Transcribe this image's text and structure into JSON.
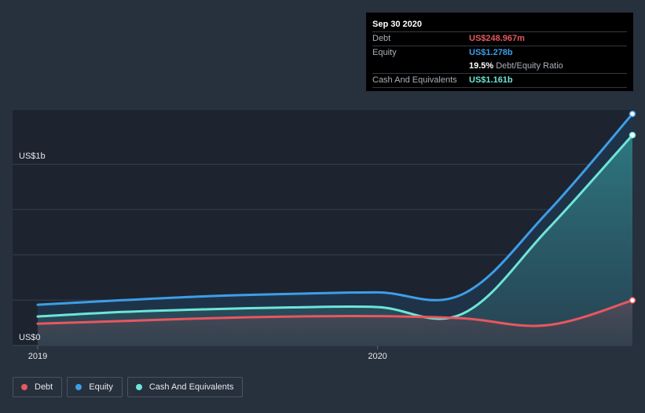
{
  "chart_data": {
    "type": "area",
    "x": [
      2019.0,
      2019.25,
      2019.5,
      2019.75,
      2020.0,
      2020.25,
      2020.5,
      2020.75
    ],
    "x_ticks": [
      {
        "value": 2019.0,
        "label": "2019"
      },
      {
        "value": 2020.0,
        "label": "2020"
      }
    ],
    "y_ticks": [
      {
        "value": 0,
        "label": "US$0"
      },
      {
        "value": 1000,
        "label": "US$1b"
      }
    ],
    "ylim": [
      0,
      1300
    ],
    "series": [
      {
        "name": "Cash And Equivalents",
        "color": "#6ee5d8",
        "values": [
          160,
          185,
          200,
          210,
          212,
          175,
          640,
          1161
        ]
      },
      {
        "name": "Equity",
        "color": "#3d9ee8",
        "values": [
          225,
          250,
          272,
          285,
          293,
          283,
          735,
          1278
        ]
      },
      {
        "name": "Debt",
        "color": "#e8575f",
        "values": [
          120,
          135,
          150,
          160,
          162,
          150,
          112,
          249
        ]
      }
    ]
  },
  "tooltip": {
    "date": "Sep 30 2020",
    "debt_label": "Debt",
    "debt_value": "US$248.967m",
    "equity_label": "Equity",
    "equity_value": "US$1.278b",
    "ratio_value": "19.5%",
    "ratio_label": "Debt/Equity Ratio",
    "cash_label": "Cash And Equivalents",
    "cash_value": "US$1.161b"
  },
  "legend": [
    {
      "label": "Debt",
      "color": "#e8575f"
    },
    {
      "label": "Equity",
      "color": "#3d9ee8"
    },
    {
      "label": "Cash And Equivalents",
      "color": "#6ee5d8"
    }
  ]
}
